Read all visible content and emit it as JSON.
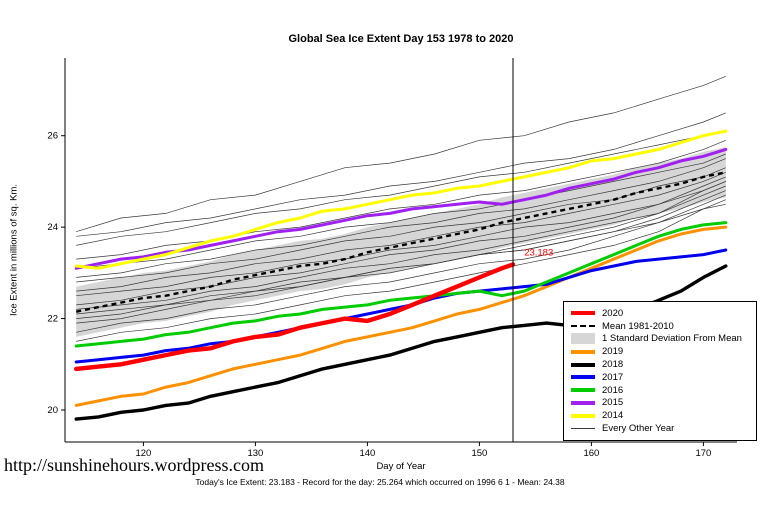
{
  "footer": {
    "url": "http://sunshinehours.wordpress.com",
    "stats": "Today's Ice Extent: 23.183  - Record for the day: 25.264 which occurred on 1996 6 1  - Mean: 24.38"
  },
  "chart_data": {
    "type": "line",
    "title": "Global Sea Ice Extent Day 153 1978 to 2020",
    "xlabel": "Day of Year",
    "ylabel": "Ice Extent in millions of sq. Km.",
    "xlim": [
      113,
      173
    ],
    "ylim": [
      19.3,
      27.7
    ],
    "xticks": [
      120,
      130,
      140,
      150,
      160,
      170
    ],
    "yticks": [
      20,
      22,
      24,
      26
    ],
    "grid": false,
    "legend_position": "right-bottom-inside",
    "marker_day": 153,
    "annotation": {
      "text": "23.183",
      "x": 154,
      "y": 23.38,
      "color": "#FF0000"
    },
    "x": [
      114,
      116,
      118,
      120,
      122,
      124,
      126,
      128,
      130,
      132,
      134,
      136,
      138,
      140,
      142,
      144,
      146,
      148,
      150,
      152,
      154,
      156,
      158,
      160,
      162,
      164,
      166,
      168,
      170,
      172
    ],
    "mean": {
      "name": "Mean 1981-2010",
      "std": 0.55,
      "band_color": "#D6D6D6",
      "values": [
        22.15,
        22.25,
        22.35,
        22.45,
        22.5,
        22.6,
        22.7,
        22.85,
        22.95,
        23.05,
        23.15,
        23.2,
        23.3,
        23.45,
        23.55,
        23.65,
        23.75,
        23.85,
        23.95,
        24.1,
        24.2,
        24.3,
        24.4,
        24.5,
        24.6,
        24.75,
        24.85,
        24.95,
        25.1,
        25.2
      ]
    },
    "series": [
      {
        "name": "2018",
        "color": "#000000",
        "width": 3.4,
        "values": [
          19.8,
          19.85,
          19.95,
          20.0,
          20.1,
          20.15,
          20.3,
          20.4,
          20.5,
          20.6,
          20.75,
          20.9,
          21.0,
          21.1,
          21.2,
          21.35,
          21.5,
          21.6,
          21.7,
          21.8,
          21.85,
          21.9,
          21.85,
          21.9,
          22.0,
          22.2,
          22.4,
          22.6,
          22.9,
          23.15
        ]
      },
      {
        "name": "2019",
        "color": "#FF9000",
        "width": 3,
        "values": [
          20.1,
          20.2,
          20.3,
          20.35,
          20.5,
          20.6,
          20.75,
          20.9,
          21.0,
          21.1,
          21.2,
          21.35,
          21.5,
          21.6,
          21.7,
          21.8,
          21.95,
          22.1,
          22.2,
          22.35,
          22.5,
          22.7,
          22.9,
          23.1,
          23.3,
          23.5,
          23.7,
          23.85,
          23.95,
          24.0
        ]
      },
      {
        "name": "2017",
        "color": "#0000EE",
        "width": 3,
        "values": [
          21.05,
          21.1,
          21.15,
          21.2,
          21.3,
          21.35,
          21.45,
          21.5,
          21.6,
          21.7,
          21.8,
          21.9,
          22.0,
          22.1,
          22.2,
          22.3,
          22.45,
          22.55,
          22.6,
          22.65,
          22.7,
          22.75,
          22.9,
          23.05,
          23.15,
          23.25,
          23.3,
          23.35,
          23.4,
          23.5
        ]
      },
      {
        "name": "2016",
        "color": "#00CC00",
        "width": 3,
        "values": [
          21.4,
          21.45,
          21.5,
          21.55,
          21.65,
          21.7,
          21.8,
          21.9,
          21.95,
          22.05,
          22.1,
          22.2,
          22.25,
          22.3,
          22.4,
          22.45,
          22.5,
          22.55,
          22.6,
          22.5,
          22.6,
          22.8,
          23.0,
          23.2,
          23.4,
          23.6,
          23.8,
          23.95,
          24.05,
          24.1
        ]
      },
      {
        "name": "2015",
        "color": "#A020F0",
        "width": 3,
        "values": [
          23.1,
          23.2,
          23.3,
          23.35,
          23.45,
          23.5,
          23.6,
          23.7,
          23.8,
          23.9,
          23.95,
          24.05,
          24.15,
          24.25,
          24.3,
          24.4,
          24.45,
          24.5,
          24.55,
          24.5,
          24.6,
          24.7,
          24.85,
          24.95,
          25.05,
          25.2,
          25.3,
          25.45,
          25.55,
          25.7
        ]
      },
      {
        "name": "2014",
        "color": "#FFFF00",
        "width": 3,
        "values": [
          23.15,
          23.1,
          23.2,
          23.3,
          23.4,
          23.55,
          23.7,
          23.8,
          23.95,
          24.1,
          24.2,
          24.35,
          24.4,
          24.5,
          24.6,
          24.7,
          24.75,
          24.85,
          24.9,
          25.0,
          25.1,
          25.2,
          25.3,
          25.45,
          25.5,
          25.6,
          25.7,
          25.85,
          26.0,
          26.1
        ]
      },
      {
        "name": "2020",
        "color": "#FF0000",
        "width": 4.4,
        "x": [
          114,
          116,
          118,
          120,
          122,
          124,
          126,
          128,
          130,
          132,
          134,
          136,
          138,
          140,
          142,
          144,
          146,
          148,
          150,
          152,
          153
        ],
        "values": [
          20.9,
          20.95,
          21.0,
          21.1,
          21.2,
          21.3,
          21.35,
          21.5,
          21.6,
          21.65,
          21.8,
          21.9,
          22.0,
          21.95,
          22.1,
          22.3,
          22.5,
          22.7,
          22.9,
          23.1,
          23.183
        ]
      }
    ],
    "background": {
      "name": "Every Other Year",
      "color": "#3a3a3a",
      "x": [
        114,
        118,
        122,
        126,
        130,
        134,
        138,
        142,
        146,
        150,
        154,
        158,
        162,
        166,
        170,
        172
      ],
      "lines": [
        [
          23.9,
          24.2,
          24.3,
          24.6,
          24.7,
          25.0,
          25.3,
          25.4,
          25.6,
          25.9,
          26.0,
          26.3,
          26.5,
          26.8,
          27.1,
          27.3
        ],
        [
          23.6,
          23.8,
          23.9,
          24.1,
          24.3,
          24.4,
          24.6,
          24.7,
          24.9,
          25.1,
          25.2,
          25.4,
          25.6,
          25.8,
          26.0,
          26.1
        ],
        [
          23.3,
          23.4,
          23.6,
          23.7,
          23.9,
          24.0,
          24.2,
          24.4,
          24.5,
          24.7,
          24.8,
          25.0,
          25.2,
          25.4,
          25.7,
          25.9
        ],
        [
          23.1,
          23.2,
          23.3,
          23.5,
          23.7,
          23.8,
          24.0,
          24.1,
          24.3,
          24.4,
          24.6,
          24.8,
          25.0,
          25.2,
          25.4,
          25.6
        ],
        [
          22.9,
          23.0,
          23.2,
          23.3,
          23.5,
          23.6,
          23.8,
          24.0,
          24.1,
          24.3,
          24.4,
          24.6,
          24.8,
          25.0,
          25.3,
          25.5
        ],
        [
          22.8,
          22.9,
          23.0,
          23.2,
          23.3,
          23.5,
          23.7,
          23.8,
          24.0,
          24.1,
          24.3,
          24.5,
          24.6,
          24.9,
          25.1,
          25.3
        ],
        [
          22.6,
          22.7,
          22.9,
          23.0,
          23.2,
          23.3,
          23.5,
          23.6,
          23.8,
          24.0,
          24.1,
          24.3,
          24.5,
          24.7,
          25.0,
          25.2
        ],
        [
          22.5,
          22.6,
          22.7,
          22.9,
          23.0,
          23.2,
          23.3,
          23.5,
          23.6,
          23.8,
          24.0,
          24.1,
          24.3,
          24.5,
          24.8,
          25.0
        ],
        [
          22.3,
          22.4,
          22.6,
          22.7,
          22.9,
          23.0,
          23.2,
          23.4,
          23.5,
          23.7,
          23.8,
          24.0,
          24.2,
          24.5,
          24.9,
          25.1
        ],
        [
          22.2,
          22.3,
          22.4,
          22.6,
          22.7,
          22.9,
          23.1,
          23.2,
          23.4,
          23.5,
          23.7,
          23.9,
          24.1,
          24.3,
          24.7,
          24.9
        ],
        [
          22.0,
          22.1,
          22.3,
          22.4,
          22.6,
          22.7,
          22.9,
          23.0,
          23.2,
          23.4,
          23.5,
          23.7,
          23.9,
          24.2,
          24.6,
          24.8
        ],
        [
          21.9,
          22.0,
          22.2,
          22.4,
          22.5,
          22.7,
          22.9,
          23.1,
          23.2,
          23.4,
          23.6,
          23.8,
          24.0,
          24.3,
          24.8,
          25.0
        ],
        [
          21.7,
          21.9,
          22.0,
          22.2,
          22.3,
          22.5,
          22.7,
          22.8,
          23.0,
          23.2,
          23.3,
          23.5,
          23.8,
          24.1,
          24.5,
          24.7
        ],
        [
          21.5,
          21.7,
          21.8,
          22.0,
          22.1,
          22.3,
          22.5,
          22.6,
          22.8,
          23.0,
          23.2,
          23.4,
          23.6,
          23.9,
          24.4,
          24.6
        ],
        [
          23.8,
          23.9,
          24.1,
          24.2,
          24.4,
          24.6,
          24.7,
          24.9,
          25.0,
          25.2,
          25.4,
          25.5,
          25.7,
          26.0,
          26.3,
          26.5
        ],
        [
          22.1,
          22.2,
          22.3,
          22.5,
          22.6,
          22.8,
          22.9,
          23.1,
          23.2,
          23.4,
          23.5,
          23.7,
          23.9,
          24.1,
          24.4,
          24.5
        ]
      ]
    },
    "legend": [
      {
        "label": "2020",
        "color": "#FF0000",
        "style": "thick"
      },
      {
        "label": "Mean 1981-2010",
        "color": "#000000",
        "style": "dashed"
      },
      {
        "label": "1 Standard Deviation From Mean",
        "color": "#D6D6D6",
        "style": "band"
      },
      {
        "label": "2019",
        "color": "#FF9000",
        "style": "thick"
      },
      {
        "label": "2018",
        "color": "#000000",
        "style": "thick"
      },
      {
        "label": "2017",
        "color": "#0000EE",
        "style": "thick"
      },
      {
        "label": "2016",
        "color": "#00CC00",
        "style": "thick"
      },
      {
        "label": "2015",
        "color": "#A020F0",
        "style": "thick"
      },
      {
        "label": "2014",
        "color": "#FFFF00",
        "style": "thick"
      },
      {
        "label": "Every Other Year",
        "color": "#3a3a3a",
        "style": "thin"
      }
    ]
  }
}
